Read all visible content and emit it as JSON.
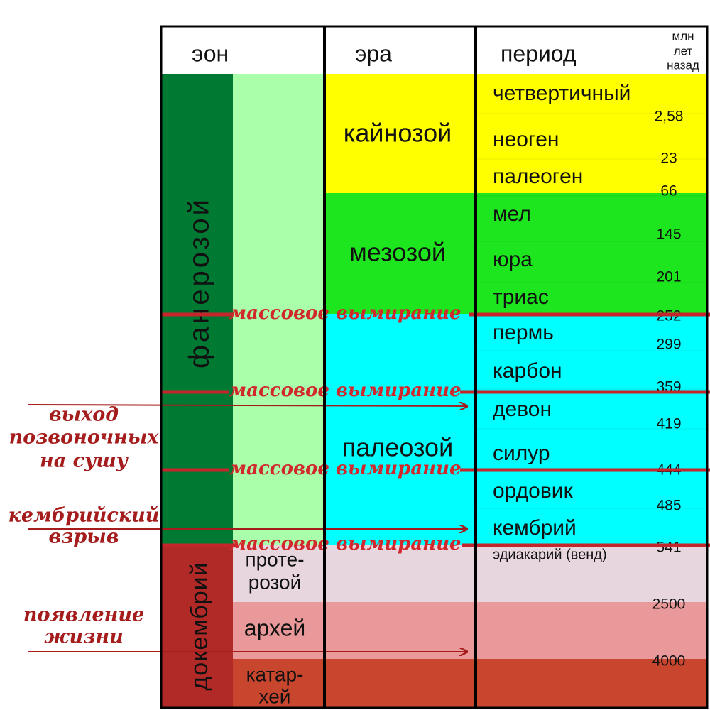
{
  "header": {
    "eon": "эон",
    "era": "эра",
    "period": "период",
    "age_unit": [
      "млн",
      "лет",
      "назад"
    ]
  },
  "eons": [
    {
      "label": "фанерозой",
      "subeons": []
    },
    {
      "label": "докембрий",
      "subeons": [
        {
          "lines": [
            "проте-",
            "розой"
          ]
        },
        {
          "lines": [
            "архей"
          ]
        },
        {
          "lines": [
            "катар-",
            "хей"
          ]
        }
      ]
    }
  ],
  "eras": [
    "кайнозой",
    "мезозой",
    "палеозой"
  ],
  "periods": [
    "четвертичный",
    "неоген",
    "палеоген",
    "мел",
    "юра",
    "триас",
    "пермь",
    "карбон",
    "девон",
    "силур",
    "ордовик",
    "кембрий",
    "эдиакарий (венд)"
  ],
  "ages": [
    "2,58",
    "23",
    "66",
    "145",
    "201",
    "252",
    "299",
    "359",
    "419",
    "444",
    "485",
    "541",
    "2500",
    "4000"
  ],
  "extinctions": [
    "массовое вымирание",
    "массовое вымирание",
    "массовое вымирание",
    "массовое вымирание"
  ],
  "annotations": [
    {
      "lines": [
        "выход",
        "позвоночных",
        "на сушу"
      ]
    },
    {
      "lines": [
        "кембрийский",
        "взрыв"
      ]
    },
    {
      "lines": [
        "появление",
        "жизни"
      ]
    }
  ]
}
